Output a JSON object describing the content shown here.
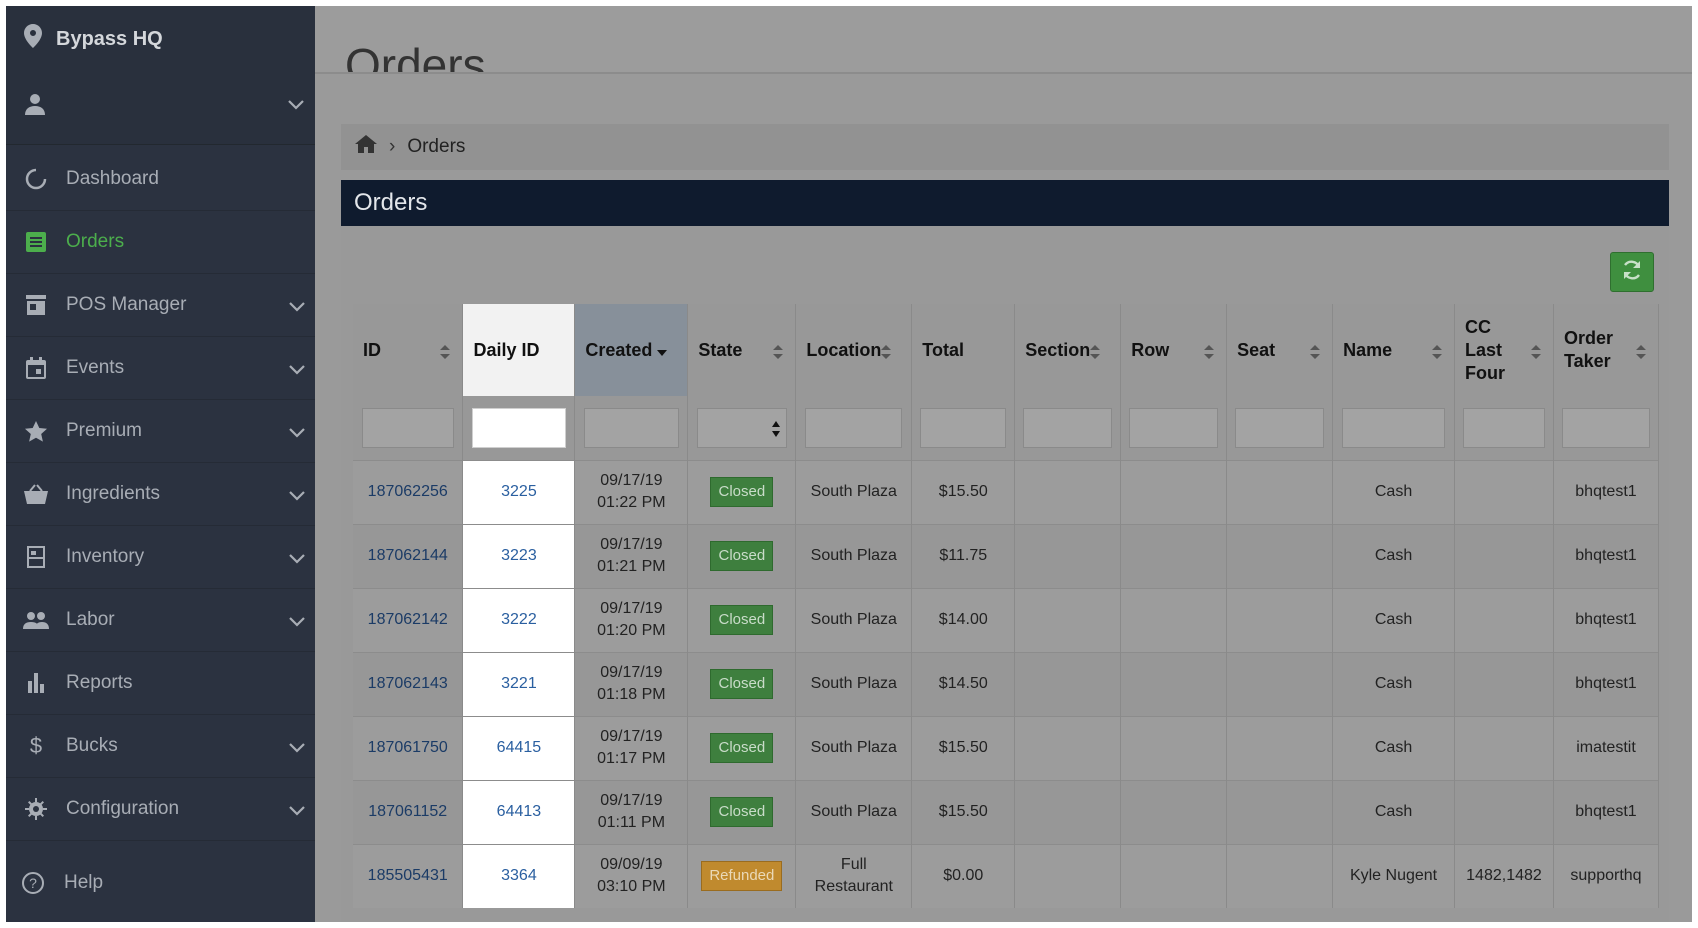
{
  "sidebar": {
    "location": "Bypass HQ",
    "items": [
      {
        "label": "Dashboard",
        "icon": "dashboard-icon"
      },
      {
        "label": "Orders",
        "icon": "orders-icon"
      },
      {
        "label": "POS Manager",
        "icon": "store-icon"
      },
      {
        "label": "Events",
        "icon": "calendar-icon"
      },
      {
        "label": "Premium",
        "icon": "star-icon"
      },
      {
        "label": "Ingredients",
        "icon": "basket-icon"
      },
      {
        "label": "Inventory",
        "icon": "inventory-icon"
      },
      {
        "label": "Labor",
        "icon": "people-icon"
      },
      {
        "label": "Reports",
        "icon": "bar-chart-icon"
      },
      {
        "label": "Bucks",
        "icon": "dollar-icon"
      },
      {
        "label": "Configuration",
        "icon": "gear-icon"
      }
    ],
    "help": "Help",
    "active_color": "#4cae4c"
  },
  "main": {
    "page_title": "Orders",
    "breadcrumb": {
      "current": "Orders"
    },
    "panel_title": "Orders",
    "columns": {
      "id": "ID",
      "daily_id": "Daily ID",
      "created": "Created",
      "state": "State",
      "location": "Location",
      "total": "Total",
      "section": "Section",
      "row": "Row",
      "seat": "Seat",
      "name": "Name",
      "cc1": "CC",
      "cc2": "Last",
      "cc3": "Four",
      "taker1": "Order",
      "taker2": "Taker"
    },
    "rows": [
      {
        "id": "187062256",
        "daily_id": "3225",
        "date": "09/17/19",
        "time": "01:22 PM",
        "state": "Closed",
        "loc1": "South Plaza",
        "loc2": "",
        "total": "$15.50",
        "section": "",
        "row": "",
        "seat": "",
        "name": "Cash",
        "cc": "",
        "taker": "bhqtest1"
      },
      {
        "id": "187062144",
        "daily_id": "3223",
        "date": "09/17/19",
        "time": "01:21 PM",
        "state": "Closed",
        "loc1": "South Plaza",
        "loc2": "",
        "total": "$11.75",
        "section": "",
        "row": "",
        "seat": "",
        "name": "Cash",
        "cc": "",
        "taker": "bhqtest1"
      },
      {
        "id": "187062142",
        "daily_id": "3222",
        "date": "09/17/19",
        "time": "01:20 PM",
        "state": "Closed",
        "loc1": "South Plaza",
        "loc2": "",
        "total": "$14.00",
        "section": "",
        "row": "",
        "seat": "",
        "name": "Cash",
        "cc": "",
        "taker": "bhqtest1"
      },
      {
        "id": "187062143",
        "daily_id": "3221",
        "date": "09/17/19",
        "time": "01:18 PM",
        "state": "Closed",
        "loc1": "South Plaza",
        "loc2": "",
        "total": "$14.50",
        "section": "",
        "row": "",
        "seat": "",
        "name": "Cash",
        "cc": "",
        "taker": "bhqtest1"
      },
      {
        "id": "187061750",
        "daily_id": "64415",
        "date": "09/17/19",
        "time": "01:17 PM",
        "state": "Closed",
        "loc1": "South Plaza",
        "loc2": "",
        "total": "$15.50",
        "section": "",
        "row": "",
        "seat": "",
        "name": "Cash",
        "cc": "",
        "taker": "imatestit"
      },
      {
        "id": "187061152",
        "daily_id": "64413",
        "date": "09/17/19",
        "time": "01:11 PM",
        "state": "Closed",
        "loc1": "South Plaza",
        "loc2": "",
        "total": "$15.50",
        "section": "",
        "row": "",
        "seat": "",
        "name": "Cash",
        "cc": "",
        "taker": "bhqtest1"
      },
      {
        "id": "185505431",
        "daily_id": "3364",
        "date": "09/09/19",
        "time": "03:10 PM",
        "state": "Refunded",
        "loc1": "Full",
        "loc2": "Restaurant",
        "total": "$0.00",
        "section": "",
        "row": "",
        "seat": "",
        "name": "Kyle Nugent",
        "cc": "1482,1482",
        "taker": "supporthq"
      }
    ]
  },
  "colors": {
    "sidebar_bg": "#2b3240",
    "panel_header": "#0f1b2e",
    "closed_badge": "#3e7f3e",
    "refunded_badge": "#c08a2e",
    "refresh_button": "#3f8f3f"
  }
}
